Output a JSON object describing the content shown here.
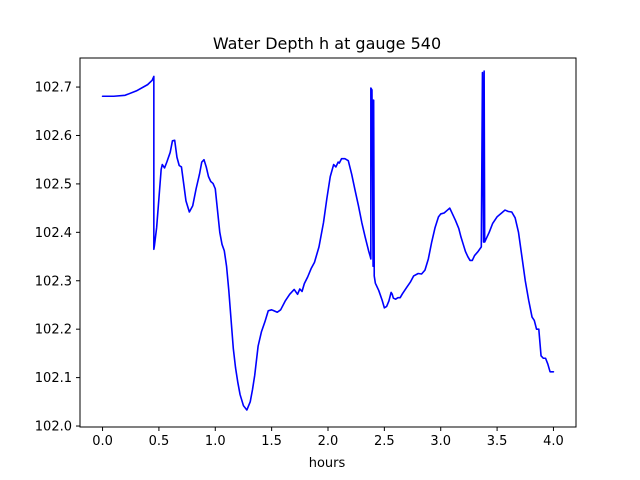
{
  "chart_data": {
    "type": "line",
    "title": "Water Depth h at gauge 540",
    "xlabel": "hours",
    "ylabel": "",
    "xlim": [
      -0.2,
      4.2
    ],
    "ylim": [
      101.998,
      102.76
    ],
    "xticks": [
      0.0,
      0.5,
      1.0,
      1.5,
      2.0,
      2.5,
      3.0,
      3.5,
      4.0
    ],
    "xtick_labels": [
      "0.0",
      "0.5",
      "1.0",
      "1.5",
      "2.0",
      "2.5",
      "3.0",
      "3.5",
      "4.0"
    ],
    "yticks": [
      102.0,
      102.1,
      102.2,
      102.3,
      102.4,
      102.5,
      102.6,
      102.7
    ],
    "ytick_labels": [
      "102.0",
      "102.1",
      "102.2",
      "102.3",
      "102.4",
      "102.5",
      "102.6",
      "102.7"
    ],
    "grid": false,
    "line_color": "#0000ff",
    "series": [
      {
        "name": "",
        "x": [
          0.0,
          0.1,
          0.2,
          0.3,
          0.4,
          0.44,
          0.455,
          0.455,
          0.46,
          0.48,
          0.5,
          0.52,
          0.53,
          0.55,
          0.57,
          0.6,
          0.62,
          0.64,
          0.66,
          0.68,
          0.7,
          0.72,
          0.74,
          0.77,
          0.8,
          0.83,
          0.86,
          0.88,
          0.9,
          0.92,
          0.94,
          0.96,
          0.98,
          1.0,
          1.02,
          1.04,
          1.06,
          1.08,
          1.1,
          1.12,
          1.14,
          1.16,
          1.18,
          1.2,
          1.22,
          1.25,
          1.28,
          1.31,
          1.33,
          1.35,
          1.38,
          1.41,
          1.44,
          1.47,
          1.5,
          1.52,
          1.55,
          1.58,
          1.62,
          1.66,
          1.7,
          1.73,
          1.75,
          1.77,
          1.79,
          1.82,
          1.85,
          1.88,
          1.92,
          1.96,
          1.99,
          2.02,
          2.05,
          2.07,
          2.09,
          2.1,
          2.12,
          2.15,
          2.18,
          2.21,
          2.24,
          2.27,
          2.3,
          2.33,
          2.36,
          2.375,
          2.38,
          2.38,
          2.39,
          2.4,
          2.4,
          2.405,
          2.41,
          2.41,
          2.42,
          2.45,
          2.48,
          2.5,
          2.52,
          2.54,
          2.56,
          2.57,
          2.58,
          2.6,
          2.62,
          2.64,
          2.66,
          2.68,
          2.7,
          2.73,
          2.76,
          2.8,
          2.83,
          2.86,
          2.89,
          2.92,
          2.95,
          2.98,
          3.0,
          3.03,
          3.06,
          3.08,
          3.1,
          3.13,
          3.16,
          3.18,
          3.2,
          3.22,
          3.24,
          3.26,
          3.28,
          3.3,
          3.33,
          3.36,
          3.37,
          3.37,
          3.38,
          3.385,
          3.39,
          3.4,
          3.43,
          3.46,
          3.5,
          3.54,
          3.57,
          3.6,
          3.63,
          3.66,
          3.69,
          3.72,
          3.75,
          3.78,
          3.81,
          3.83,
          3.85,
          3.87,
          3.89,
          3.91,
          3.93,
          3.95,
          3.97,
          4.0
        ],
        "y": [
          102.681,
          102.681,
          102.683,
          102.692,
          102.705,
          102.714,
          102.722,
          102.365,
          102.372,
          102.41,
          102.47,
          102.53,
          102.54,
          102.533,
          102.545,
          102.565,
          102.589,
          102.59,
          102.555,
          102.538,
          102.535,
          102.5,
          102.465,
          102.442,
          102.455,
          102.49,
          102.52,
          102.545,
          102.55,
          102.535,
          102.515,
          102.505,
          102.501,
          102.49,
          102.445,
          102.4,
          102.375,
          102.362,
          102.33,
          102.28,
          102.22,
          102.16,
          102.12,
          102.09,
          102.065,
          102.042,
          102.033,
          102.05,
          102.075,
          102.105,
          102.165,
          102.195,
          102.215,
          102.238,
          102.24,
          102.238,
          102.235,
          102.24,
          102.258,
          102.272,
          102.282,
          102.272,
          102.283,
          102.278,
          102.294,
          102.308,
          102.325,
          102.338,
          102.37,
          102.42,
          102.47,
          102.515,
          102.54,
          102.535,
          102.545,
          102.543,
          102.552,
          102.552,
          102.548,
          102.52,
          102.487,
          102.455,
          102.42,
          102.39,
          102.362,
          102.35,
          102.345,
          102.698,
          102.694,
          102.33,
          102.673,
          102.673,
          102.32,
          102.31,
          102.295,
          102.28,
          102.26,
          102.244,
          102.247,
          102.258,
          102.276,
          102.272,
          102.264,
          102.262,
          102.265,
          102.265,
          102.273,
          102.28,
          102.287,
          102.297,
          102.31,
          102.315,
          102.314,
          102.322,
          102.345,
          102.38,
          102.41,
          102.432,
          102.438,
          102.44,
          102.446,
          102.45,
          102.44,
          102.425,
          102.408,
          102.39,
          102.375,
          102.36,
          102.35,
          102.342,
          102.342,
          102.352,
          102.36,
          102.37,
          102.73,
          102.73,
          102.38,
          102.733,
          102.38,
          102.385,
          102.4,
          102.418,
          102.432,
          102.44,
          102.446,
          102.443,
          102.442,
          102.43,
          102.4,
          102.35,
          102.3,
          102.26,
          102.225,
          102.218,
          102.2,
          102.2,
          102.145,
          102.14,
          102.14,
          102.128,
          102.112,
          102.112
        ]
      }
    ]
  }
}
